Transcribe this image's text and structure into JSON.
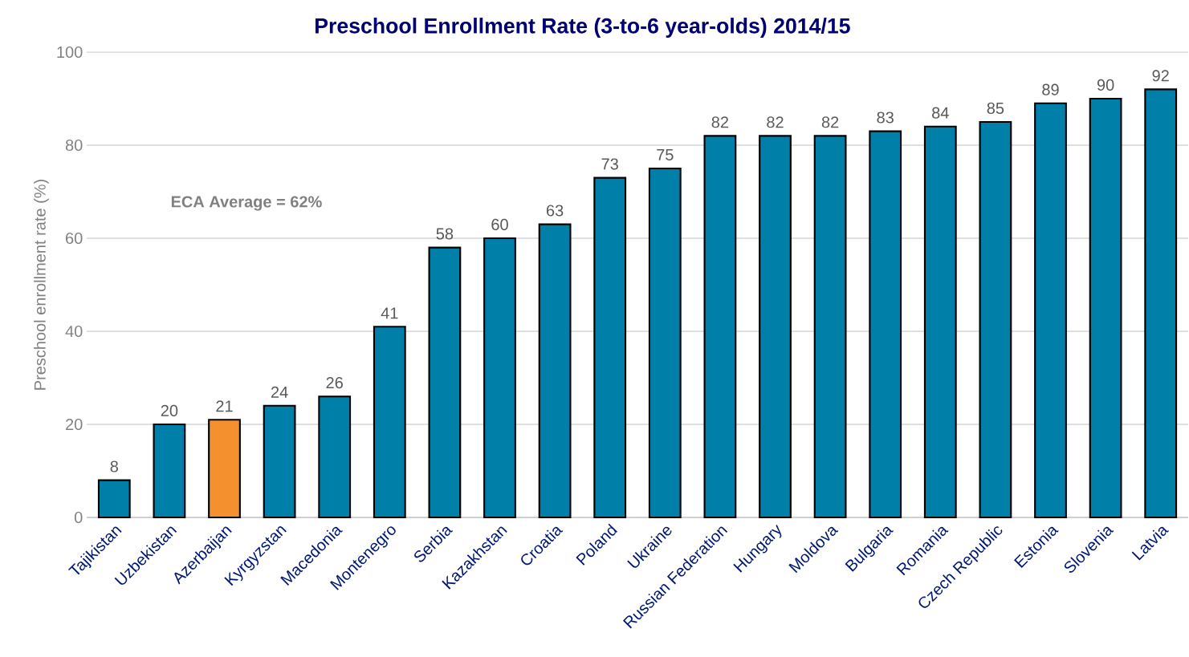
{
  "chart_data": {
    "type": "bar",
    "title": "Preschool Enrollment Rate (3-to-6 year-olds) 2014/15",
    "ylabel": "Preschool enrollment  rate (%)",
    "categories": [
      "Tajikistan",
      "Uzbekistan",
      "Azerbaijan",
      "Kyrgyzstan",
      "Macedonia",
      "Montenegro",
      "Serbia",
      "Kazakhstan",
      "Croatia",
      "Poland",
      "Ukraine",
      "Russian Federation",
      "Hungary",
      "Moldova",
      "Bulgaria",
      "Romania",
      "Czech Republic",
      "Estonia",
      "Slovenia",
      "Latvia"
    ],
    "values": [
      8,
      20,
      21,
      24,
      26,
      41,
      58,
      60,
      63,
      73,
      75,
      82,
      82,
      82,
      83,
      84,
      85,
      89,
      90,
      92
    ],
    "colors": [
      "#0080a8",
      "#0080a8",
      "#f5902e",
      "#0080a8",
      "#0080a8",
      "#0080a8",
      "#0080a8",
      "#0080a8",
      "#0080a8",
      "#0080a8",
      "#0080a8",
      "#0080a8",
      "#0080a8",
      "#0080a8",
      "#0080a8",
      "#0080a8",
      "#0080a8",
      "#0080a8",
      "#0080a8",
      "#0080a8"
    ],
    "ylim": [
      0,
      100
    ],
    "yticks": [
      0,
      20,
      40,
      60,
      80,
      100
    ],
    "grid": "y",
    "data_labels": true,
    "annotations": [
      "ECA  Average = 62%"
    ]
  }
}
